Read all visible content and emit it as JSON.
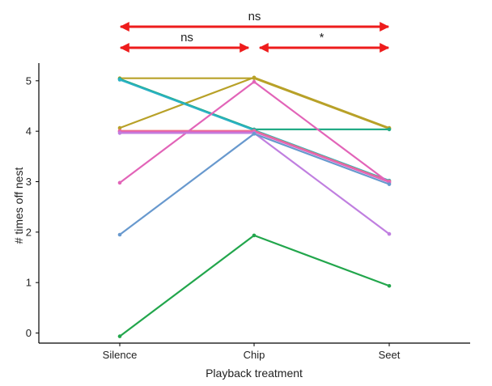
{
  "chart_data": {
    "type": "line",
    "title": "",
    "xlabel": "Playback treatment",
    "ylabel": "# times off nest",
    "categories": [
      "Silence",
      "Chip",
      "Seet"
    ],
    "ylim": [
      -0.2,
      5.35
    ],
    "yticks": [
      0,
      1,
      2,
      3,
      4,
      5
    ],
    "grid": false,
    "legend": "none",
    "series": [
      {
        "color": "#b8a128",
        "values": [
          4,
          5,
          4
        ]
      },
      {
        "color": "#b8a128",
        "values": [
          5,
          5,
          4
        ]
      },
      {
        "color": "#22ab86",
        "values": [
          5,
          4,
          4
        ]
      },
      {
        "color": "#2ab1c5",
        "values": [
          5,
          4,
          3
        ]
      },
      {
        "color": "#f0736f",
        "values": [
          4,
          4,
          3
        ]
      },
      {
        "color": "#e264b8",
        "values": [
          4,
          4,
          3
        ]
      },
      {
        "color": "#e264b8",
        "values": [
          3,
          5,
          3
        ]
      },
      {
        "color": "#c07fe0",
        "values": [
          4,
          4,
          2
        ]
      },
      {
        "color": "#6899ce",
        "values": [
          2,
          4,
          3
        ]
      },
      {
        "color": "#22a64c",
        "values": [
          0,
          2,
          1
        ]
      }
    ],
    "annotations": [
      {
        "from": "Silence",
        "to": "Seet",
        "label": "ns",
        "level": 2
      },
      {
        "from": "Silence",
        "to": "Chip",
        "label": "ns",
        "level": 1
      },
      {
        "from": "Chip",
        "to": "Seet",
        "label": "*",
        "level": 1
      }
    ],
    "annotation_color": "#ee1c1c"
  }
}
